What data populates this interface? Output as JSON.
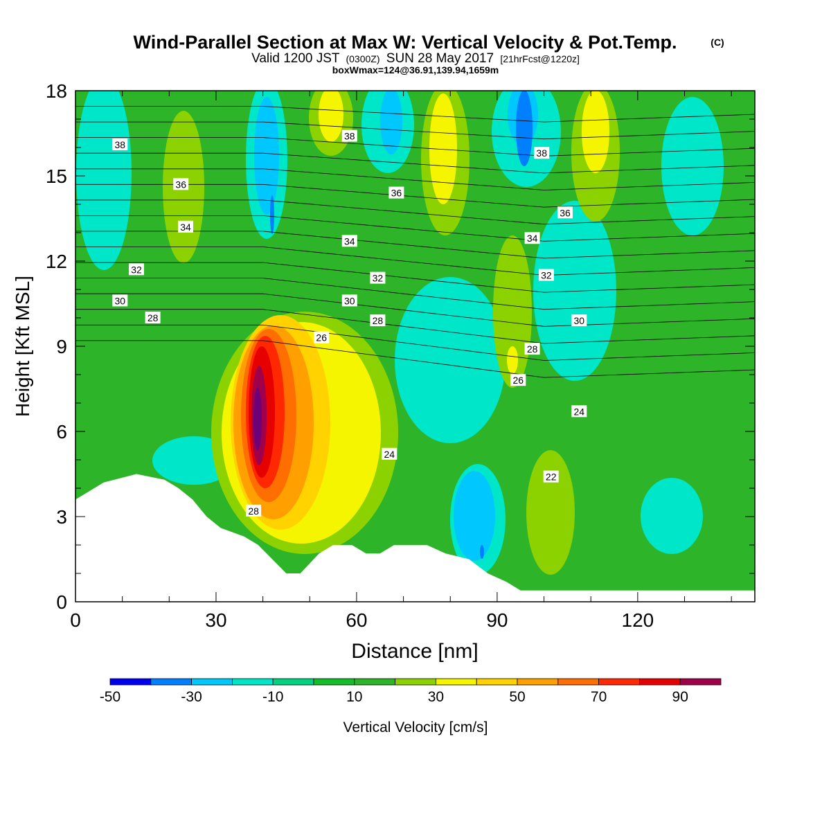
{
  "title": {
    "main": "Wind-Parallel Section at Max W: Vertical Velocity & Pot.Temp.",
    "copyright": "(C)",
    "valid_prefix": "Valid 1200 JST",
    "valid_utc": "(0300Z)",
    "valid_date": "SUN 28 May 2017",
    "valid_fcst": "[21hrFcst@1220z]",
    "boxline": "boxWmax=124@36.91,139.94,1659m"
  },
  "chart_data": {
    "type": "heatmap",
    "xlabel": "Distance [nm]",
    "ylabel": "Height [Kft MSL]",
    "xlim": [
      0,
      145
    ],
    "ylim": [
      0,
      18
    ],
    "x_ticks": [
      "0",
      "30",
      "60",
      "90",
      "120"
    ],
    "y_ticks": [
      "0",
      "3",
      "6",
      "9",
      "12",
      "15",
      "18"
    ],
    "colorbar": {
      "label": "Vertical Velocity [cm/s]",
      "tick_labels": [
        "-50",
        "-30",
        "-10",
        "10",
        "30",
        "50",
        "70",
        "90"
      ],
      "bounds": [
        -50,
        -40,
        -30,
        -20,
        -10,
        0,
        10,
        20,
        30,
        40,
        50,
        60,
        70,
        80,
        90,
        100
      ],
      "colors": [
        "#0000f0",
        "#0080ff",
        "#00c8ff",
        "#00e6c8",
        "#00d282",
        "#14be28",
        "#2db428",
        "#8cd200",
        "#f5f500",
        "#ffd200",
        "#ffa000",
        "#ff6e00",
        "#ff2800",
        "#e60000",
        "#a0004a",
        "#6e0078"
      ]
    },
    "contour_labels": [
      {
        "text": "38",
        "x": 9.5,
        "y": 16.1
      },
      {
        "text": "38",
        "x": 58.5,
        "y": 16.4
      },
      {
        "text": "38",
        "x": 99.5,
        "y": 15.8
      },
      {
        "text": "36",
        "x": 22.5,
        "y": 14.7
      },
      {
        "text": "36",
        "x": 68.5,
        "y": 14.4
      },
      {
        "text": "36",
        "x": 104.5,
        "y": 13.7
      },
      {
        "text": "34",
        "x": 23.5,
        "y": 13.2
      },
      {
        "text": "34",
        "x": 58.5,
        "y": 12.7
      },
      {
        "text": "34",
        "x": 97.5,
        "y": 12.8
      },
      {
        "text": "32",
        "x": 13,
        "y": 11.7
      },
      {
        "text": "32",
        "x": 64.5,
        "y": 11.4
      },
      {
        "text": "32",
        "x": 100.5,
        "y": 11.5
      },
      {
        "text": "30",
        "x": 9.5,
        "y": 10.6
      },
      {
        "text": "30",
        "x": 58.5,
        "y": 10.6
      },
      {
        "text": "30",
        "x": 107.5,
        "y": 9.9
      },
      {
        "text": "28",
        "x": 16.5,
        "y": 10.0
      },
      {
        "text": "28",
        "x": 64.5,
        "y": 9.9
      },
      {
        "text": "28",
        "x": 97.5,
        "y": 8.9
      },
      {
        "text": "28",
        "x": 38,
        "y": 3.2
      },
      {
        "text": "26",
        "x": 52.5,
        "y": 9.3
      },
      {
        "text": "26",
        "x": 94.5,
        "y": 7.8
      },
      {
        "text": "24",
        "x": 107.5,
        "y": 6.7
      },
      {
        "text": "24",
        "x": 67,
        "y": 5.2
      },
      {
        "text": "22",
        "x": 101.5,
        "y": 4.4
      }
    ],
    "terrain": [
      [
        0,
        3.6
      ],
      [
        3,
        3.9
      ],
      [
        6,
        4.2
      ],
      [
        13,
        4.5
      ],
      [
        19,
        4.3
      ],
      [
        22,
        4.0
      ],
      [
        25,
        3.6
      ],
      [
        28,
        3.0
      ],
      [
        31,
        2.6
      ],
      [
        36,
        2.3
      ],
      [
        39,
        2.0
      ],
      [
        42,
        1.5
      ],
      [
        45,
        1.0
      ],
      [
        48,
        1.0
      ],
      [
        52,
        1.7
      ],
      [
        55,
        2.0
      ],
      [
        59,
        2.0
      ],
      [
        62,
        1.7
      ],
      [
        65,
        1.7
      ],
      [
        68,
        2.0
      ],
      [
        75,
        2.0
      ],
      [
        79,
        1.7
      ],
      [
        84,
        1.5
      ],
      [
        88,
        1.0
      ],
      [
        92,
        0.7
      ],
      [
        95,
        0.4
      ],
      [
        145,
        0.4
      ]
    ]
  }
}
